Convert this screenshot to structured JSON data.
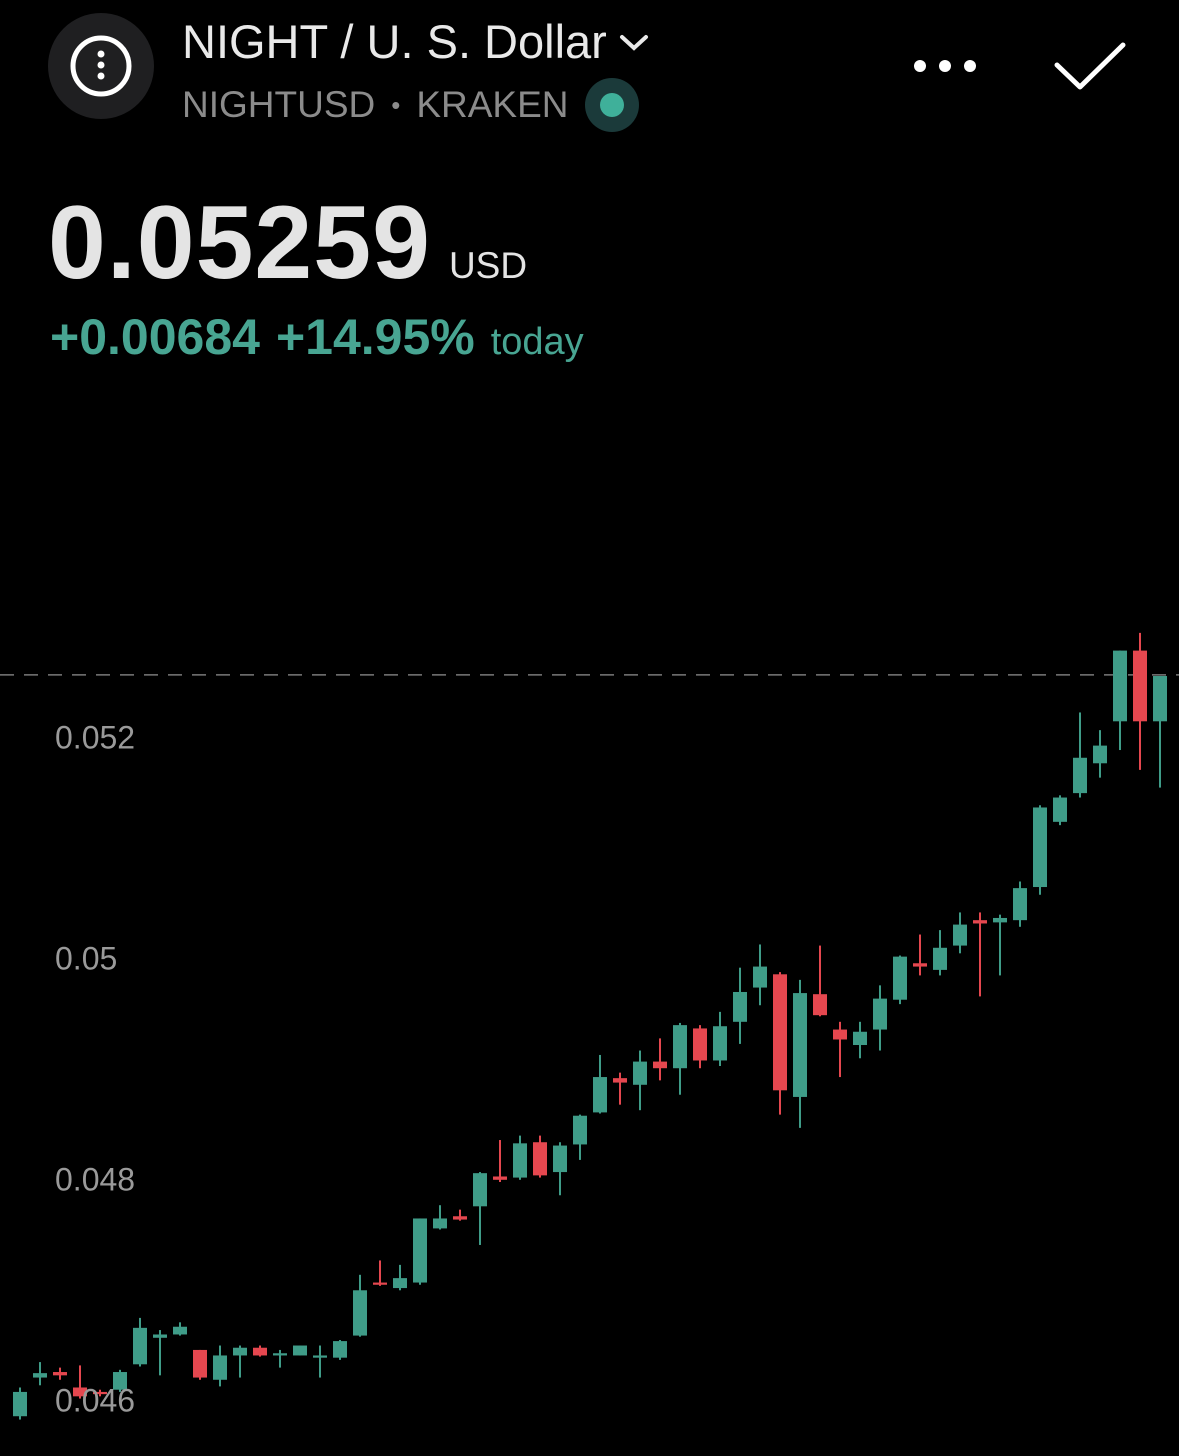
{
  "header": {
    "title": "NIGHT / U. S. Dollar",
    "symbol": "NIGHTUSD",
    "separator": "•",
    "exchange": "KRAKEN",
    "price": 0.05259,
    "currency": "USD",
    "change": "+0.00684",
    "change_percent": "+14.95%",
    "period": "today"
  },
  "chart_data": {
    "type": "candlestick",
    "up_color": "#3f9c88",
    "down_color": "#e5474f",
    "grid": false,
    "ylim": [
      0.04552,
      0.05363
    ],
    "yticks": [
      0.046,
      0.048,
      0.05,
      0.052
    ],
    "open": [
      0.04588,
      0.04623,
      0.04628,
      0.04614,
      0.0461,
      0.04612,
      0.04635,
      0.04659,
      0.04662,
      0.04648,
      0.04621,
      0.04643,
      0.0465,
      0.04643,
      0.04643,
      0.04641,
      0.04641,
      0.04661,
      0.04709,
      0.04704,
      0.04709,
      0.04758,
      0.04769,
      0.04778,
      0.04805,
      0.04804,
      0.04836,
      0.04809,
      0.04834,
      0.04863,
      0.04894,
      0.04888,
      0.04909,
      0.04903,
      0.04939,
      0.0491,
      0.04945,
      0.04976,
      0.04988,
      0.04877,
      0.0497,
      0.04938,
      0.04924,
      0.04938,
      0.04965,
      0.04998,
      0.04992,
      0.05014,
      0.05037,
      0.05035,
      0.05037,
      0.05067,
      0.05126,
      0.05152,
      0.05179,
      0.05217,
      0.05281,
      0.05217
    ],
    "high": [
      0.04614,
      0.04637,
      0.04632,
      0.04634,
      0.04612,
      0.0463,
      0.04677,
      0.04666,
      0.04673,
      0.04648,
      0.04652,
      0.04652,
      0.04652,
      0.04648,
      0.04652,
      0.04652,
      0.04657,
      0.04716,
      0.04729,
      0.04725,
      0.04767,
      0.04779,
      0.04775,
      0.04809,
      0.04838,
      0.04842,
      0.04842,
      0.04836,
      0.04861,
      0.04915,
      0.04899,
      0.04919,
      0.0493,
      0.04944,
      0.04942,
      0.04954,
      0.04994,
      0.05015,
      0.0499,
      0.04983,
      0.05014,
      0.04945,
      0.04945,
      0.04978,
      0.05005,
      0.05024,
      0.05028,
      0.05044,
      0.05044,
      0.05042,
      0.05072,
      0.05141,
      0.0515,
      0.05225,
      0.05209,
      0.05281,
      0.05297,
      0.05258
    ],
    "low": [
      0.04585,
      0.04616,
      0.04621,
      0.04604,
      0.04606,
      0.0461,
      0.04633,
      0.04625,
      0.04661,
      0.04621,
      0.04615,
      0.04623,
      0.04642,
      0.04632,
      0.04643,
      0.04623,
      0.04639,
      0.0466,
      0.04706,
      0.04702,
      0.04707,
      0.04757,
      0.04765,
      0.04743,
      0.048,
      0.04802,
      0.04804,
      0.04788,
      0.0482,
      0.04862,
      0.0487,
      0.04865,
      0.04892,
      0.04879,
      0.04903,
      0.04905,
      0.04925,
      0.0496,
      0.04861,
      0.04849,
      0.0495,
      0.04895,
      0.04912,
      0.04919,
      0.04961,
      0.04987,
      0.04987,
      0.05007,
      0.04968,
      0.04987,
      0.05031,
      0.0506,
      0.05123,
      0.05148,
      0.05166,
      0.05191,
      0.05173,
      0.05157
    ],
    "close": [
      0.0461,
      0.04627,
      0.04625,
      0.04606,
      0.04608,
      0.04628,
      0.04668,
      0.04662,
      0.04669,
      0.04623,
      0.04643,
      0.0465,
      0.04643,
      0.04645,
      0.04652,
      0.04643,
      0.04656,
      0.04702,
      0.04707,
      0.04713,
      0.04767,
      0.04767,
      0.04766,
      0.04808,
      0.04802,
      0.04835,
      0.04806,
      0.04833,
      0.0486,
      0.04895,
      0.0489,
      0.04909,
      0.04903,
      0.04942,
      0.0491,
      0.04941,
      0.04972,
      0.04995,
      0.04883,
      0.04971,
      0.04951,
      0.04929,
      0.04936,
      0.04966,
      0.05004,
      0.04995,
      0.05012,
      0.05033,
      0.05034,
      0.05039,
      0.05066,
      0.05139,
      0.05148,
      0.05184,
      0.05195,
      0.05281,
      0.05217,
      0.05258
    ]
  }
}
